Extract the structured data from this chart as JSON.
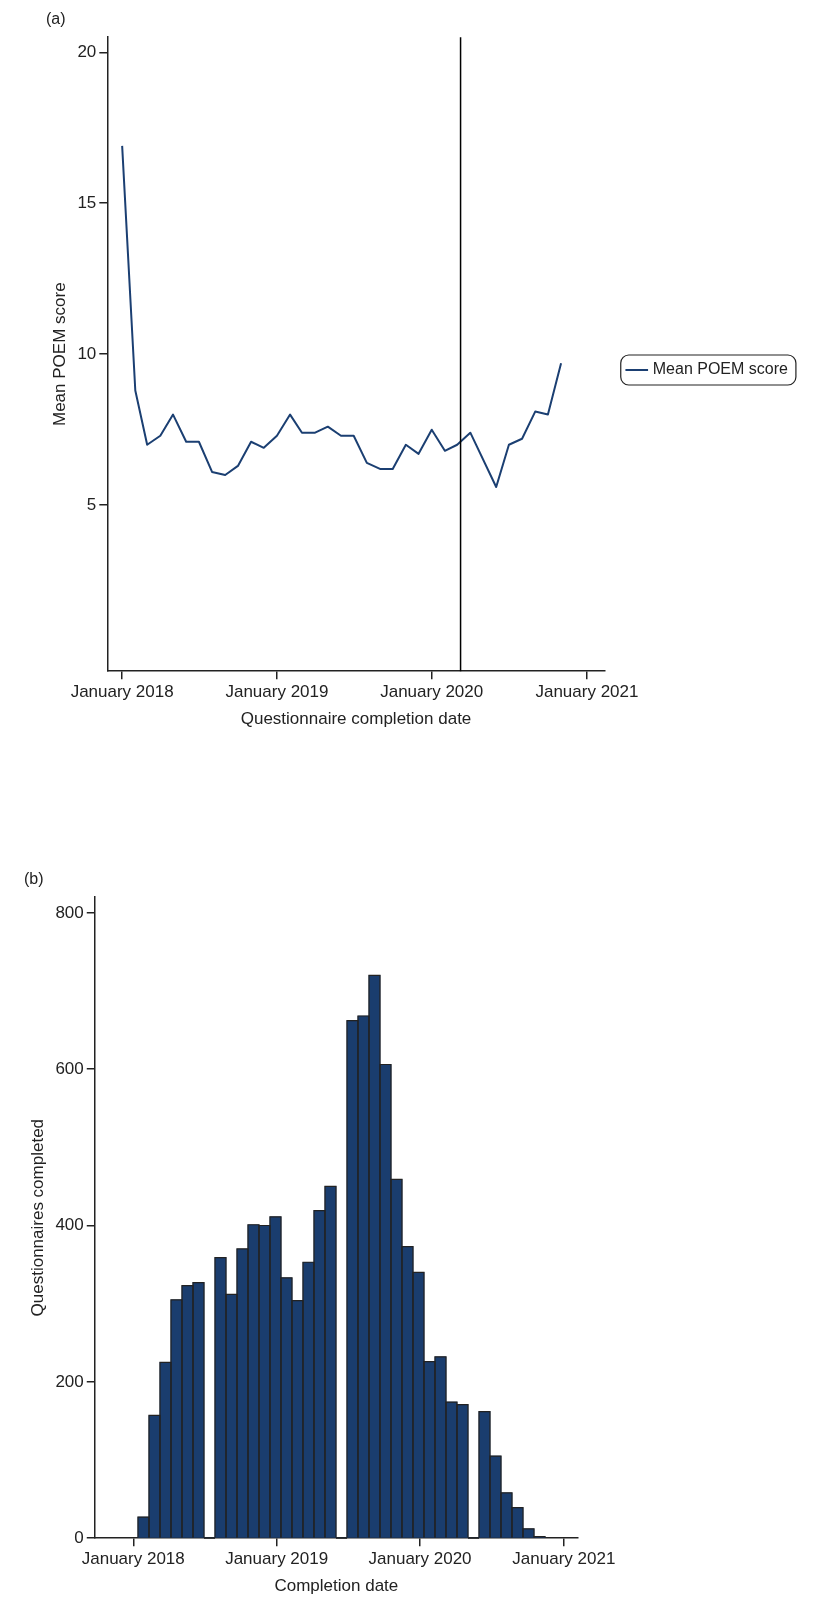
{
  "chart_data": [
    {
      "type": "line",
      "title": "(a)",
      "xlabel": "Questionnaire completion date",
      "ylabel": "Mean POEM score",
      "legend": "right",
      "marker": "none",
      "x": [
        "2018-01",
        "2018-02",
        "2018-03",
        "2018-04",
        "2018-05",
        "2018-06",
        "2018-07",
        "2018-08",
        "2018-09",
        "2018-10",
        "2018-11",
        "2018-12",
        "2019-01",
        "2019-02",
        "2019-03",
        "2019-04",
        "2019-05",
        "2019-06",
        "2019-07",
        "2019-08",
        "2019-09",
        "2019-10",
        "2019-11",
        "2019-12",
        "2020-01",
        "2020-02",
        "2020-03",
        "2020-04",
        "2020-06",
        "2020-07",
        "2020-08",
        "2020-09",
        "2020-10",
        "2020-11"
      ],
      "series": [
        {
          "name": "Mean POEM score",
          "color": "#1b3f72",
          "values": [
            16.9,
            8.8,
            7.0,
            7.3,
            8.0,
            7.1,
            7.1,
            6.1,
            6.0,
            6.3,
            7.1,
            6.9,
            7.3,
            8.0,
            7.4,
            7.4,
            7.6,
            7.3,
            7.3,
            6.4,
            6.2,
            6.2,
            7.0,
            6.7,
            7.5,
            6.8,
            7.0,
            7.4,
            5.6,
            7.0,
            7.2,
            8.1,
            8.0,
            9.7
          ]
        }
      ],
      "xlim": [
        "2017-11-27",
        "2021-02-12"
      ],
      "xticks": [
        {
          "value": "2018-01",
          "label": "January 2018"
        },
        {
          "value": "2019-01",
          "label": "January 2019"
        },
        {
          "value": "2020-01",
          "label": "January 2020"
        },
        {
          "value": "2021-01",
          "label": "January 2021"
        }
      ],
      "ylim": [
        -0.5,
        20.5
      ],
      "yticks": [
        5,
        10,
        15,
        20
      ],
      "ref_lines": [
        {
          "axis": "x",
          "value": "2020-03-09",
          "color": "#000000"
        }
      ]
    },
    {
      "type": "histogram",
      "title": "(b)",
      "xlabel": "Completion date",
      "ylabel": "Questionnaires completed",
      "color": "#1a3d6e",
      "bins": [
        "2018-01-13",
        "2018-02-10",
        "2018-03-10",
        "2018-04-07",
        "2018-05-05",
        "2018-06-02",
        "2018-06-30",
        "2018-07-28",
        "2018-08-25",
        "2018-09-22",
        "2018-10-20",
        "2018-11-17",
        "2018-12-15",
        "2019-01-12",
        "2019-02-09",
        "2019-03-09",
        "2019-04-06",
        "2019-05-04",
        "2019-06-01",
        "2019-06-29",
        "2019-07-27",
        "2019-08-24",
        "2019-09-21",
        "2019-10-19",
        "2019-11-16",
        "2019-12-14",
        "2020-01-11",
        "2020-02-08",
        "2020-03-07",
        "2020-04-04",
        "2020-05-02",
        "2020-05-30",
        "2020-06-27",
        "2020-07-25",
        "2020-08-22",
        "2020-09-19",
        "2020-10-17",
        "2020-11-14"
      ],
      "values": [
        27,
        157,
        225,
        305,
        323,
        327,
        0,
        359,
        312,
        370,
        401,
        400,
        411,
        333,
        304,
        353,
        419,
        450,
        0,
        662,
        668,
        720,
        606,
        459,
        373,
        340,
        226,
        232,
        174,
        171,
        0,
        162,
        105,
        58,
        39,
        12,
        2
      ],
      "xlim": [
        "2017-09-25",
        "2021-02-06"
      ],
      "xticks": [
        {
          "value": "2018-01",
          "label": "January 2018"
        },
        {
          "value": "2019-01",
          "label": "January 2019"
        },
        {
          "value": "2020-01",
          "label": "January 2020"
        },
        {
          "value": "2021-01",
          "label": "January 2021"
        }
      ],
      "ylim": [
        0,
        820
      ],
      "yticks": [
        0,
        200,
        400,
        600,
        800
      ]
    }
  ]
}
